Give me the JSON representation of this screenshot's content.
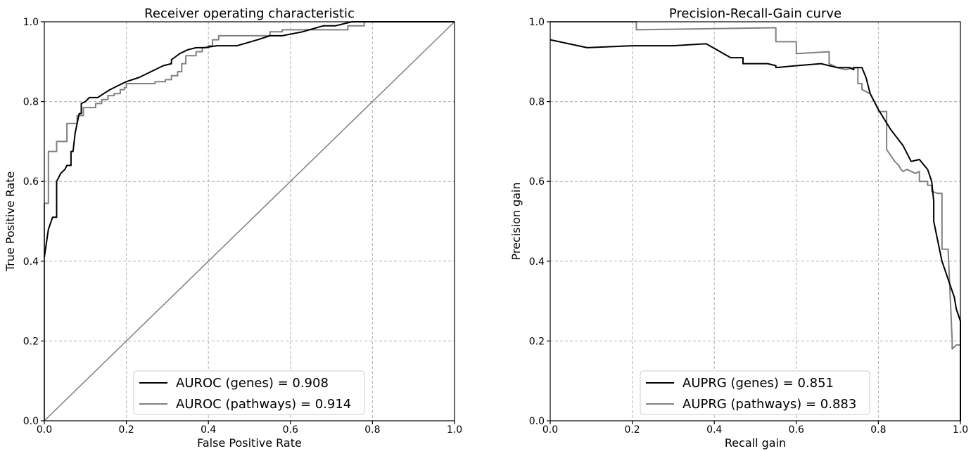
{
  "chart_data": [
    {
      "type": "line",
      "title": "Receiver operating characteristic",
      "xlabel": "False Positive Rate",
      "ylabel": "True Positive Rate",
      "xlim": [
        0,
        1
      ],
      "ylim": [
        0,
        1
      ],
      "xticks": [
        "0.0",
        "0.2",
        "0.4",
        "0.6",
        "0.8",
        "1.0"
      ],
      "yticks": [
        "0.0",
        "0.2",
        "0.4",
        "0.6",
        "0.8",
        "1.0"
      ],
      "grid": true,
      "legend_position": "bottom-center",
      "series": [
        {
          "name": "AUROC (genes) = 0.908",
          "color": "#000000",
          "x": [
            0.0,
            0.01,
            0.02,
            0.03,
            0.03,
            0.04,
            0.05,
            0.055,
            0.065,
            0.065,
            0.07,
            0.075,
            0.08,
            0.085,
            0.09,
            0.09,
            0.1,
            0.11,
            0.12,
            0.13,
            0.145,
            0.16,
            0.18,
            0.2,
            0.23,
            0.26,
            0.29,
            0.31,
            0.31,
            0.33,
            0.35,
            0.37,
            0.39,
            0.42,
            0.47,
            0.52,
            0.55,
            0.58,
            0.63,
            0.68,
            0.71,
            0.75,
            0.78,
            1.0
          ],
          "y": [
            0.41,
            0.48,
            0.51,
            0.51,
            0.6,
            0.62,
            0.63,
            0.64,
            0.64,
            0.675,
            0.675,
            0.72,
            0.745,
            0.77,
            0.77,
            0.795,
            0.8,
            0.81,
            0.81,
            0.81,
            0.82,
            0.83,
            0.84,
            0.85,
            0.86,
            0.875,
            0.89,
            0.895,
            0.905,
            0.92,
            0.93,
            0.935,
            0.935,
            0.94,
            0.94,
            0.955,
            0.965,
            0.965,
            0.975,
            0.99,
            0.99,
            1.0,
            1.0,
            1.0
          ]
        },
        {
          "name": "AUROC (pathways) = 0.914",
          "color": "#808080",
          "x": [
            0.0,
            0.0,
            0.01,
            0.01,
            0.03,
            0.03,
            0.055,
            0.055,
            0.08,
            0.08,
            0.095,
            0.095,
            0.125,
            0.125,
            0.14,
            0.14,
            0.155,
            0.155,
            0.17,
            0.17,
            0.185,
            0.185,
            0.195,
            0.195,
            0.2,
            0.2,
            0.27,
            0.27,
            0.295,
            0.295,
            0.31,
            0.31,
            0.325,
            0.325,
            0.335,
            0.335,
            0.345,
            0.345,
            0.37,
            0.37,
            0.385,
            0.385,
            0.4,
            0.4,
            0.41,
            0.41,
            0.425,
            0.425,
            0.55,
            0.55,
            0.58,
            0.58,
            0.74,
            0.74,
            0.78,
            0.78,
            0.81,
            0.81,
            1.0
          ],
          "y": [
            0.0,
            0.545,
            0.545,
            0.675,
            0.675,
            0.7,
            0.7,
            0.745,
            0.745,
            0.765,
            0.765,
            0.785,
            0.785,
            0.795,
            0.795,
            0.805,
            0.805,
            0.815,
            0.815,
            0.82,
            0.82,
            0.83,
            0.83,
            0.835,
            0.835,
            0.845,
            0.845,
            0.85,
            0.85,
            0.855,
            0.855,
            0.865,
            0.865,
            0.875,
            0.875,
            0.895,
            0.895,
            0.915,
            0.915,
            0.925,
            0.925,
            0.935,
            0.935,
            0.94,
            0.94,
            0.955,
            0.955,
            0.965,
            0.965,
            0.975,
            0.975,
            0.98,
            0.98,
            0.99,
            0.99,
            1.0,
            1.0,
            1.0,
            1.0
          ]
        },
        {
          "name": "",
          "color": "#808080",
          "x": [
            0,
            1
          ],
          "y": [
            0,
            1
          ]
        }
      ]
    },
    {
      "type": "line",
      "title": "Precision-Recall-Gain curve",
      "xlabel": "Recall gain",
      "ylabel": "Precision gain",
      "xlim": [
        0,
        1
      ],
      "ylim": [
        0,
        1
      ],
      "xticks": [
        "0.0",
        "0.2",
        "0.4",
        "0.6",
        "0.8",
        "1.0"
      ],
      "yticks": [
        "0.0",
        "0.2",
        "0.4",
        "0.6",
        "0.8",
        "1.0"
      ],
      "grid": true,
      "legend_position": "bottom-center",
      "series": [
        {
          "name": "AUPRG (genes) = 0.851",
          "color": "#000000",
          "x": [
            0.0,
            0.09,
            0.2,
            0.3,
            0.38,
            0.44,
            0.47,
            0.47,
            0.53,
            0.55,
            0.55,
            0.6,
            0.66,
            0.7,
            0.73,
            0.74,
            0.74,
            0.76,
            0.77,
            0.78,
            0.78,
            0.8,
            0.83,
            0.86,
            0.88,
            0.9,
            0.92,
            0.93,
            0.935,
            0.935,
            0.945,
            0.955,
            0.965,
            0.975,
            0.985,
            0.99,
            1.0,
            1.0
          ],
          "y": [
            0.955,
            0.935,
            0.94,
            0.94,
            0.945,
            0.91,
            0.91,
            0.895,
            0.895,
            0.89,
            0.885,
            0.89,
            0.895,
            0.885,
            0.885,
            0.88,
            0.885,
            0.885,
            0.86,
            0.82,
            0.82,
            0.78,
            0.73,
            0.69,
            0.65,
            0.655,
            0.63,
            0.6,
            0.55,
            0.5,
            0.45,
            0.4,
            0.37,
            0.34,
            0.31,
            0.28,
            0.25,
            0.0
          ]
        },
        {
          "name": "AUPRG (pathways) = 0.883",
          "color": "#808080",
          "x": [
            0.0,
            0.21,
            0.21,
            0.55,
            0.55,
            0.6,
            0.6,
            0.68,
            0.68,
            0.7,
            0.72,
            0.74,
            0.75,
            0.75,
            0.76,
            0.76,
            0.78,
            0.79,
            0.8,
            0.8,
            0.82,
            0.82,
            0.84,
            0.85,
            0.855,
            0.86,
            0.87,
            0.89,
            0.9,
            0.9,
            0.92,
            0.92,
            0.93,
            0.93,
            0.945,
            0.955,
            0.955,
            0.97,
            0.98,
            0.98,
            0.99,
            1.0,
            1.0
          ],
          "y": [
            1.0,
            1.0,
            0.98,
            0.985,
            0.95,
            0.95,
            0.92,
            0.925,
            0.895,
            0.885,
            0.88,
            0.885,
            0.885,
            0.845,
            0.845,
            0.83,
            0.82,
            0.8,
            0.78,
            0.775,
            0.775,
            0.68,
            0.65,
            0.64,
            0.63,
            0.625,
            0.63,
            0.62,
            0.625,
            0.6,
            0.6,
            0.59,
            0.59,
            0.575,
            0.57,
            0.57,
            0.43,
            0.43,
            0.2,
            0.18,
            0.19,
            0.19,
            0.0
          ]
        }
      ]
    }
  ]
}
